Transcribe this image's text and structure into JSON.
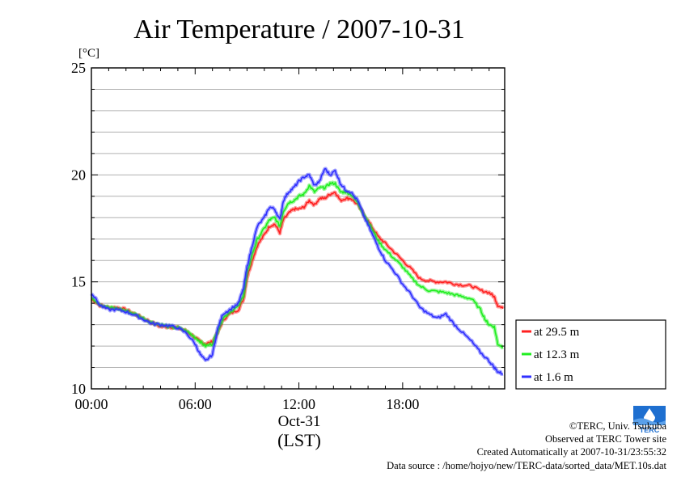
{
  "chart_data": {
    "type": "line",
    "title": "Air Temperature / 2007-10-31",
    "ylabel": "[°C]",
    "xlabel": "(LST)",
    "x_tick_labels": [
      "00:00",
      "06:00",
      "12:00",
      "18:00"
    ],
    "x_tick_hours": [
      0,
      6,
      12,
      18
    ],
    "date_label": "Oct-31",
    "xlim": [
      0,
      23.9
    ],
    "ylim": [
      10,
      25
    ],
    "y_ticks": [
      10,
      15,
      20,
      25
    ],
    "y_minor_step": 1,
    "x_minor_step": 1,
    "grid": true,
    "legend_position": "right",
    "series": [
      {
        "name": "at 29.5 m",
        "color": "#ff2020",
        "points": [
          [
            0,
            14.2
          ],
          [
            0.5,
            13.9
          ],
          [
            1,
            13.8
          ],
          [
            1.5,
            13.8
          ],
          [
            2,
            13.7
          ],
          [
            2.5,
            13.5
          ],
          [
            3,
            13.3
          ],
          [
            3.5,
            13.1
          ],
          [
            4,
            12.9
          ],
          [
            4.5,
            12.9
          ],
          [
            5,
            12.85
          ],
          [
            5.5,
            12.7
          ],
          [
            6,
            12.4
          ],
          [
            6.3,
            12.2
          ],
          [
            6.6,
            12.1
          ],
          [
            7,
            12.2
          ],
          [
            7.3,
            12.6
          ],
          [
            7.6,
            13.2
          ],
          [
            8,
            13.5
          ],
          [
            8.5,
            13.7
          ],
          [
            8.8,
            14.2
          ],
          [
            9,
            15.2
          ],
          [
            9.3,
            16.0
          ],
          [
            9.6,
            16.7
          ],
          [
            10,
            17.2
          ],
          [
            10.3,
            17.6
          ],
          [
            10.6,
            17.7
          ],
          [
            10.9,
            17.3
          ],
          [
            11.1,
            17.9
          ],
          [
            11.4,
            18.2
          ],
          [
            11.7,
            18.4
          ],
          [
            12,
            18.4
          ],
          [
            12.3,
            18.5
          ],
          [
            12.6,
            18.8
          ],
          [
            12.9,
            18.6
          ],
          [
            13.2,
            18.9
          ],
          [
            13.5,
            18.9
          ],
          [
            13.8,
            19.1
          ],
          [
            14.1,
            19.2
          ],
          [
            14.4,
            18.8
          ],
          [
            14.7,
            18.9
          ],
          [
            15,
            18.9
          ],
          [
            15.4,
            18.6
          ],
          [
            15.8,
            18.1
          ],
          [
            16.2,
            17.6
          ],
          [
            16.6,
            17.1
          ],
          [
            17,
            16.8
          ],
          [
            17.5,
            16.4
          ],
          [
            18,
            16.0
          ],
          [
            18.5,
            15.6
          ],
          [
            19,
            15.15
          ],
          [
            19.5,
            15.05
          ],
          [
            20,
            15.0
          ],
          [
            20.5,
            15.0
          ],
          [
            21,
            14.9
          ],
          [
            21.5,
            14.85
          ],
          [
            22,
            14.8
          ],
          [
            22.5,
            14.6
          ],
          [
            23,
            14.5
          ],
          [
            23.3,
            14.3
          ],
          [
            23.5,
            13.9
          ],
          [
            23.8,
            13.75
          ]
        ]
      },
      {
        "name": "at 12.3 m",
        "color": "#20ee20",
        "points": [
          [
            0,
            14.3
          ],
          [
            0.5,
            13.95
          ],
          [
            1,
            13.8
          ],
          [
            1.5,
            13.75
          ],
          [
            2,
            13.65
          ],
          [
            2.5,
            13.5
          ],
          [
            3,
            13.3
          ],
          [
            3.5,
            13.1
          ],
          [
            4,
            13.0
          ],
          [
            4.5,
            12.9
          ],
          [
            5,
            12.85
          ],
          [
            5.5,
            12.7
          ],
          [
            6,
            12.4
          ],
          [
            6.3,
            12.2
          ],
          [
            6.6,
            12.0
          ],
          [
            7,
            12.1
          ],
          [
            7.3,
            12.7
          ],
          [
            7.6,
            13.3
          ],
          [
            8,
            13.6
          ],
          [
            8.5,
            13.85
          ],
          [
            8.8,
            14.4
          ],
          [
            9,
            15.4
          ],
          [
            9.3,
            16.3
          ],
          [
            9.6,
            17.0
          ],
          [
            10,
            17.5
          ],
          [
            10.3,
            17.9
          ],
          [
            10.6,
            18.0
          ],
          [
            10.9,
            17.6
          ],
          [
            11.1,
            18.3
          ],
          [
            11.4,
            18.7
          ],
          [
            11.7,
            18.8
          ],
          [
            12,
            19.0
          ],
          [
            12.3,
            19.1
          ],
          [
            12.6,
            19.5
          ],
          [
            12.9,
            19.2
          ],
          [
            13.2,
            19.4
          ],
          [
            13.5,
            19.4
          ],
          [
            13.8,
            19.6
          ],
          [
            14.1,
            19.6
          ],
          [
            14.4,
            19.2
          ],
          [
            14.7,
            19.2
          ],
          [
            15,
            19.1
          ],
          [
            15.4,
            18.7
          ],
          [
            15.8,
            18.1
          ],
          [
            16.2,
            17.5
          ],
          [
            16.6,
            16.9
          ],
          [
            17,
            16.5
          ],
          [
            17.5,
            16.1
          ],
          [
            18,
            15.7
          ],
          [
            18.5,
            15.2
          ],
          [
            19,
            14.8
          ],
          [
            19.5,
            14.6
          ],
          [
            20,
            14.55
          ],
          [
            20.5,
            14.5
          ],
          [
            21,
            14.4
          ],
          [
            21.5,
            14.3
          ],
          [
            22,
            14.2
          ],
          [
            22.5,
            13.7
          ],
          [
            22.8,
            13.2
          ],
          [
            23,
            13.0
          ],
          [
            23.3,
            12.9
          ],
          [
            23.5,
            12.1
          ],
          [
            23.8,
            11.95
          ]
        ]
      },
      {
        "name": "at 1.6 m",
        "color": "#3030ff",
        "points": [
          [
            0,
            14.5
          ],
          [
            0.5,
            13.9
          ],
          [
            1,
            13.7
          ],
          [
            1.5,
            13.7
          ],
          [
            2,
            13.6
          ],
          [
            2.5,
            13.45
          ],
          [
            3,
            13.25
          ],
          [
            3.5,
            13.05
          ],
          [
            4,
            13.0
          ],
          [
            4.5,
            12.95
          ],
          [
            5,
            12.85
          ],
          [
            5.5,
            12.6
          ],
          [
            6,
            12.1
          ],
          [
            6.3,
            11.6
          ],
          [
            6.6,
            11.3
          ],
          [
            7,
            11.6
          ],
          [
            7.3,
            12.8
          ],
          [
            7.6,
            13.5
          ],
          [
            8,
            13.7
          ],
          [
            8.5,
            14.0
          ],
          [
            8.8,
            14.7
          ],
          [
            9,
            15.7
          ],
          [
            9.3,
            16.7
          ],
          [
            9.6,
            17.6
          ],
          [
            10,
            18.0
          ],
          [
            10.3,
            18.5
          ],
          [
            10.6,
            18.4
          ],
          [
            10.9,
            17.9
          ],
          [
            11.1,
            18.8
          ],
          [
            11.4,
            19.2
          ],
          [
            11.7,
            19.4
          ],
          [
            12,
            19.7
          ],
          [
            12.3,
            19.9
          ],
          [
            12.6,
            20.0
          ],
          [
            12.9,
            19.5
          ],
          [
            13.2,
            19.7
          ],
          [
            13.5,
            20.3
          ],
          [
            13.8,
            20.0
          ],
          [
            14.1,
            20.2
          ],
          [
            14.4,
            19.6
          ],
          [
            14.7,
            19.3
          ],
          [
            15,
            19.2
          ],
          [
            15.4,
            18.8
          ],
          [
            15.8,
            18.0
          ],
          [
            16.2,
            17.3
          ],
          [
            16.6,
            16.6
          ],
          [
            17,
            16.0
          ],
          [
            17.5,
            15.5
          ],
          [
            18,
            14.9
          ],
          [
            18.5,
            14.4
          ],
          [
            19,
            13.8
          ],
          [
            19.5,
            13.5
          ],
          [
            20,
            13.3
          ],
          [
            20.5,
            13.5
          ],
          [
            21,
            13.0
          ],
          [
            21.5,
            12.6
          ],
          [
            22,
            12.2
          ],
          [
            22.5,
            11.7
          ],
          [
            23,
            11.3
          ],
          [
            23.3,
            11.0
          ],
          [
            23.5,
            10.8
          ],
          [
            23.8,
            10.7
          ]
        ]
      }
    ]
  },
  "credits": {
    "copyright": "©TERC, Univ. Tsukuba",
    "observed": "Observed at TERC Tower site",
    "created": "Created Automatically at 2007-10-31/23:55:32",
    "source": "Data source : /home/hojyo/new/TERC-data/sorted_data/MET.10s.dat"
  },
  "logo": {
    "text": "TERC",
    "color": "#1e6fd0"
  }
}
